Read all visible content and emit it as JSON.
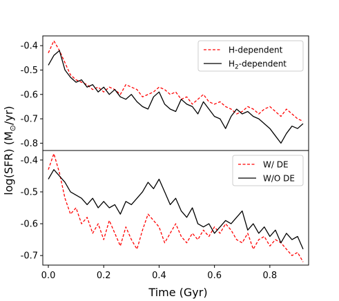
{
  "chart_data": [
    {
      "type": "line",
      "panel": "top",
      "xlim": [
        -0.02,
        0.94
      ],
      "ylim": [
        -0.83,
        -0.36
      ],
      "yticks": [
        "-0.4",
        "-0.5",
        "-0.6",
        "-0.7",
        "-0.8"
      ],
      "ytick_values": [
        -0.4,
        -0.5,
        -0.6,
        -0.7,
        -0.8
      ],
      "legend_position": "top-right",
      "series": [
        {
          "name": "H-dependent",
          "name_sub": "",
          "name_suffix": "",
          "color": "#ff0000",
          "dash": "dashed",
          "x": [
            0.0,
            0.02,
            0.04,
            0.06,
            0.08,
            0.1,
            0.12,
            0.14,
            0.16,
            0.18,
            0.2,
            0.22,
            0.24,
            0.26,
            0.28,
            0.3,
            0.32,
            0.34,
            0.36,
            0.38,
            0.4,
            0.42,
            0.44,
            0.46,
            0.48,
            0.5,
            0.52,
            0.54,
            0.56,
            0.58,
            0.6,
            0.62,
            0.64,
            0.66,
            0.68,
            0.7,
            0.72,
            0.74,
            0.76,
            0.78,
            0.8,
            0.82,
            0.84,
            0.86,
            0.88,
            0.9,
            0.92
          ],
          "y": [
            -0.43,
            -0.38,
            -0.42,
            -0.47,
            -0.52,
            -0.54,
            -0.55,
            -0.56,
            -0.58,
            -0.57,
            -0.59,
            -0.57,
            -0.58,
            -0.6,
            -0.56,
            -0.57,
            -0.58,
            -0.61,
            -0.6,
            -0.59,
            -0.57,
            -0.58,
            -0.6,
            -0.59,
            -0.62,
            -0.61,
            -0.64,
            -0.62,
            -0.6,
            -0.63,
            -0.64,
            -0.63,
            -0.65,
            -0.66,
            -0.68,
            -0.67,
            -0.65,
            -0.66,
            -0.68,
            -0.66,
            -0.65,
            -0.67,
            -0.69,
            -0.66,
            -0.68,
            -0.7,
            -0.71
          ]
        },
        {
          "name": "H",
          "name_sub": "2",
          "name_suffix": "-dependent",
          "color": "#000000",
          "dash": "solid",
          "x": [
            0.0,
            0.02,
            0.04,
            0.06,
            0.08,
            0.1,
            0.12,
            0.14,
            0.16,
            0.18,
            0.2,
            0.22,
            0.24,
            0.26,
            0.28,
            0.3,
            0.32,
            0.34,
            0.36,
            0.38,
            0.4,
            0.42,
            0.44,
            0.46,
            0.48,
            0.5,
            0.52,
            0.54,
            0.56,
            0.58,
            0.6,
            0.62,
            0.64,
            0.66,
            0.68,
            0.7,
            0.72,
            0.74,
            0.76,
            0.78,
            0.8,
            0.82,
            0.84,
            0.86,
            0.88,
            0.9,
            0.92
          ],
          "y": [
            -0.48,
            -0.44,
            -0.42,
            -0.5,
            -0.53,
            -0.55,
            -0.54,
            -0.57,
            -0.56,
            -0.59,
            -0.57,
            -0.6,
            -0.58,
            -0.61,
            -0.62,
            -0.6,
            -0.63,
            -0.65,
            -0.66,
            -0.61,
            -0.59,
            -0.64,
            -0.66,
            -0.67,
            -0.62,
            -0.64,
            -0.65,
            -0.68,
            -0.63,
            -0.66,
            -0.69,
            -0.7,
            -0.74,
            -0.69,
            -0.66,
            -0.68,
            -0.67,
            -0.69,
            -0.7,
            -0.72,
            -0.74,
            -0.77,
            -0.8,
            -0.76,
            -0.73,
            -0.74,
            -0.72
          ]
        }
      ]
    },
    {
      "type": "line",
      "panel": "bottom",
      "xlim": [
        -0.02,
        0.94
      ],
      "ylim": [
        -0.73,
        -0.37
      ],
      "yticks": [
        "-0.4",
        "-0.5",
        "-0.6",
        "-0.7"
      ],
      "ytick_values": [
        -0.4,
        -0.5,
        -0.6,
        -0.7
      ],
      "xticks": [
        "0.0",
        "0.2",
        "0.4",
        "0.6",
        "0.8"
      ],
      "xtick_values": [
        0.0,
        0.2,
        0.4,
        0.6,
        0.8
      ],
      "legend_position": "top-right",
      "series": [
        {
          "name": "W/ DE",
          "name_sub": "",
          "name_suffix": "",
          "color": "#ff0000",
          "dash": "dashed",
          "x": [
            0.0,
            0.02,
            0.04,
            0.06,
            0.08,
            0.1,
            0.12,
            0.14,
            0.16,
            0.18,
            0.2,
            0.22,
            0.24,
            0.26,
            0.28,
            0.3,
            0.32,
            0.34,
            0.36,
            0.38,
            0.4,
            0.42,
            0.44,
            0.46,
            0.48,
            0.5,
            0.52,
            0.54,
            0.56,
            0.58,
            0.6,
            0.62,
            0.64,
            0.66,
            0.68,
            0.7,
            0.72,
            0.74,
            0.76,
            0.78,
            0.8,
            0.82,
            0.84,
            0.86,
            0.88,
            0.9,
            0.92
          ],
          "y": [
            -0.43,
            -0.38,
            -0.44,
            -0.52,
            -0.57,
            -0.55,
            -0.6,
            -0.58,
            -0.63,
            -0.6,
            -0.65,
            -0.59,
            -0.63,
            -0.67,
            -0.61,
            -0.65,
            -0.68,
            -0.62,
            -0.57,
            -0.59,
            -0.61,
            -0.66,
            -0.63,
            -0.6,
            -0.64,
            -0.66,
            -0.63,
            -0.65,
            -0.62,
            -0.64,
            -0.61,
            -0.63,
            -0.6,
            -0.62,
            -0.65,
            -0.66,
            -0.63,
            -0.68,
            -0.65,
            -0.64,
            -0.67,
            -0.65,
            -0.66,
            -0.68,
            -0.7,
            -0.69,
            -0.72
          ]
        },
        {
          "name": "W/O DE",
          "name_sub": "",
          "name_suffix": "",
          "color": "#000000",
          "dash": "solid",
          "x": [
            0.0,
            0.02,
            0.04,
            0.06,
            0.08,
            0.1,
            0.12,
            0.14,
            0.16,
            0.18,
            0.2,
            0.22,
            0.24,
            0.26,
            0.28,
            0.3,
            0.32,
            0.34,
            0.36,
            0.38,
            0.4,
            0.42,
            0.44,
            0.46,
            0.48,
            0.5,
            0.52,
            0.54,
            0.56,
            0.58,
            0.6,
            0.62,
            0.64,
            0.66,
            0.68,
            0.7,
            0.72,
            0.74,
            0.76,
            0.78,
            0.8,
            0.82,
            0.84,
            0.86,
            0.88,
            0.9,
            0.92
          ],
          "y": [
            -0.46,
            -0.43,
            -0.45,
            -0.47,
            -0.5,
            -0.51,
            -0.52,
            -0.54,
            -0.52,
            -0.55,
            -0.53,
            -0.55,
            -0.54,
            -0.57,
            -0.53,
            -0.54,
            -0.52,
            -0.5,
            -0.47,
            -0.49,
            -0.46,
            -0.5,
            -0.54,
            -0.52,
            -0.56,
            -0.58,
            -0.55,
            -0.6,
            -0.61,
            -0.6,
            -0.63,
            -0.61,
            -0.59,
            -0.6,
            -0.58,
            -0.56,
            -0.62,
            -0.6,
            -0.63,
            -0.61,
            -0.64,
            -0.62,
            -0.66,
            -0.63,
            -0.65,
            -0.64,
            -0.68
          ]
        }
      ]
    }
  ],
  "axes": {
    "xlabel": "Time (Gyr)",
    "ylabel": "log(SFR) (M",
    "ylabel_symbol": "⊙",
    "ylabel_suffix": "/yr)"
  }
}
